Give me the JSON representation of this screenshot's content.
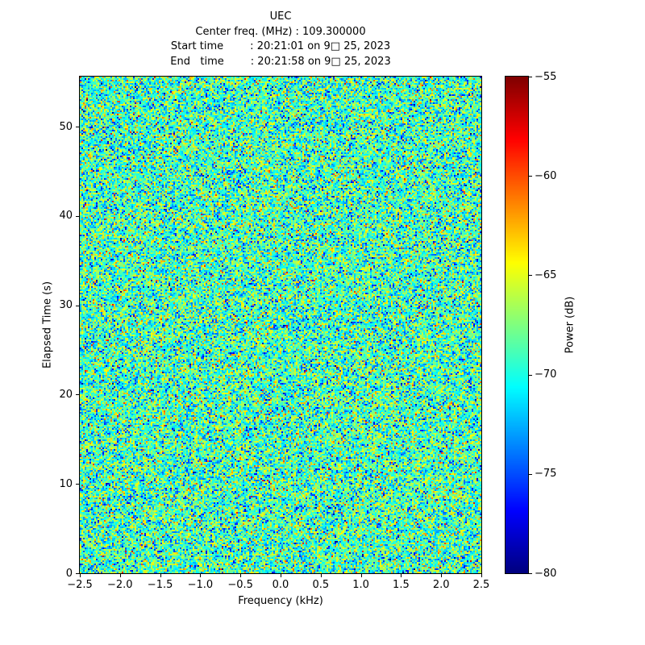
{
  "header": {
    "title": "UEC",
    "center_freq_line": "Center freq. (MHz) : 109.300000",
    "start_time_line": "Start time        : 20:21:01 on 9□ 25, 2023",
    "end_time_line": "End   time        : 20:21:58 on 9□ 25, 2023"
  },
  "chart_data": {
    "type": "heatmap",
    "title": "UEC",
    "subtitle_lines": [
      "Center freq. (MHz) : 109.300000",
      "Start time        : 20:21:01 on 9□ 25, 2023",
      "End   time        : 20:21:58 on 9□ 25, 2023"
    ],
    "xlabel": "Frequency (kHz)",
    "ylabel": "Elapsed Time (s)",
    "xlim": [
      -2.5,
      2.5
    ],
    "ylim": [
      0,
      55.6
    ],
    "xticks": [
      -2.5,
      -2.0,
      -1.5,
      -1.0,
      -0.5,
      0.0,
      0.5,
      1.0,
      1.5,
      2.0,
      2.5
    ],
    "xtick_labels": [
      "−2.5",
      "−2.0",
      "−1.5",
      "−1.0",
      "−0.5",
      "0.0",
      "0.5",
      "1.0",
      "1.5",
      "2.0",
      "2.5"
    ],
    "yticks": [
      0,
      10,
      20,
      30,
      40,
      50
    ],
    "ytick_labels": [
      "0",
      "10",
      "20",
      "30",
      "40",
      "50"
    ],
    "grid": false,
    "legend": null,
    "colorbar": {
      "label": "Power (dB)",
      "vmin": -80,
      "vmax": -55,
      "ticks": [
        -55,
        -60,
        -65,
        -70,
        -75,
        -80
      ],
      "tick_labels": [
        "−55",
        "−60",
        "−65",
        "−70",
        "−75",
        "−80"
      ],
      "colormap": "jet"
    },
    "noise": {
      "description": "broadband random noise spectrogram, no visible signal features",
      "distribution": "gaussian",
      "mean_db": -69,
      "std_db": 3.4,
      "cols": 249,
      "rows": 308,
      "seed": 7
    }
  }
}
